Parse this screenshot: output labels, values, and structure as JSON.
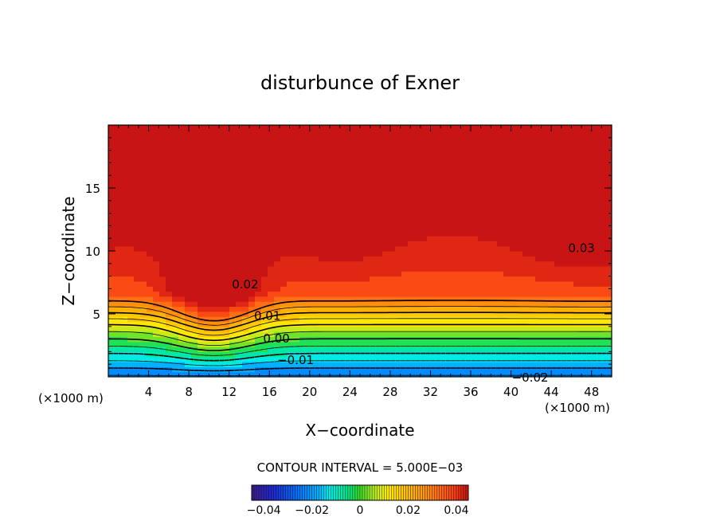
{
  "chart_data": {
    "type": "heatmap",
    "title": "disturbunce of Exner",
    "xlabel": "X−coordinate",
    "ylabel": "Z−coordinate",
    "x_unit_left": "(×1000 m)",
    "x_unit_right": "(×1000 m)",
    "xlim": [
      0,
      50
    ],
    "ylim": [
      0,
      20
    ],
    "x_ticks": [
      4,
      8,
      12,
      16,
      20,
      24,
      28,
      32,
      36,
      40,
      44,
      48
    ],
    "x_tick_labels": [
      "4",
      "8",
      "12",
      "16",
      "20",
      "24",
      "28",
      "32",
      "36",
      "40",
      "44",
      "48"
    ],
    "y_ticks": [
      5,
      10,
      15
    ],
    "y_tick_labels": [
      "5",
      "10",
      "15"
    ],
    "contour_interval_text": "CONTOUR INTERVAL = 5.000E−03",
    "contour_interval": 0.005,
    "value_range": [
      -0.045,
      0.045
    ],
    "contour_labels": [
      {
        "text": "0.03",
        "x": 47,
        "z": 10.3
      },
      {
        "text": "0.02",
        "x": 13.6,
        "z": 7.4
      },
      {
        "text": "0.01",
        "x": 15.8,
        "z": 4.9
      },
      {
        "text": "0.00",
        "x": 16.7,
        "z": 3.1
      },
      {
        "text": "−0.01",
        "x": 18.6,
        "z": 1.4
      },
      {
        "text": "−0.02",
        "x": 41.9,
        "z": 0.0
      }
    ],
    "field_features": [
      {
        "kind": "max",
        "x": 0,
        "z": 11.5,
        "value": 0.028
      },
      {
        "kind": "max",
        "x": 23,
        "z": 11.5,
        "value": 0.031
      },
      {
        "kind": "max",
        "x": 48,
        "z": 11.5,
        "value": 0.034
      },
      {
        "kind": "min",
        "x": 10,
        "z": 0,
        "value": -0.027
      }
    ],
    "colorbar": {
      "tick_values": [
        -0.04,
        -0.02,
        0,
        0.02,
        0.04
      ],
      "tick_labels": [
        "−0.04",
        "−0.02",
        "0",
        "0.02",
        "0.04"
      ]
    }
  }
}
